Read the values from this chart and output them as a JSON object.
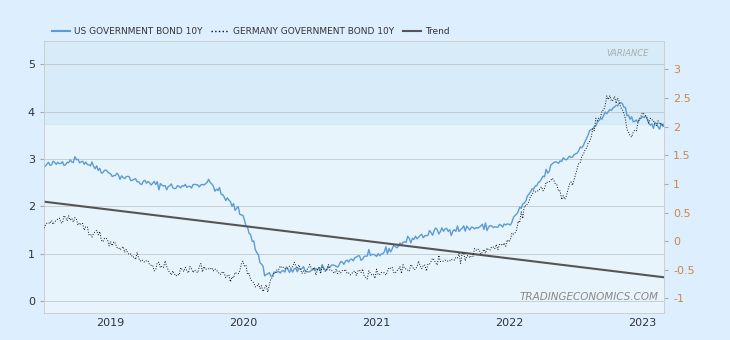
{
  "legend_items": [
    {
      "label": "US GOVERNMENT BOND 10Y",
      "color": "#5b9bd5",
      "linestyle": "solid"
    },
    {
      "label": "GERMANY GOVERNMENT BOND 10Y",
      "color": "#111111",
      "linestyle": "dotted"
    },
    {
      "label": "Trend",
      "color": "#555555",
      "linestyle": "solid"
    }
  ],
  "left_yticks": [
    0,
    1,
    2,
    3,
    4,
    5
  ],
  "right_yticks": [
    -1,
    -0.5,
    0,
    0.5,
    1,
    1.5,
    2,
    2.5,
    3
  ],
  "xtick_labels": [
    "2019",
    "2020",
    "2021",
    "2022",
    "2023"
  ],
  "xtick_positions": [
    6,
    18,
    30,
    42,
    54
  ],
  "ylim_left": [
    -0.25,
    5.5
  ],
  "ylim_right": [
    -1.25,
    3.5
  ],
  "xlim": [
    0,
    56
  ],
  "background_fill": "#e8f4fc",
  "grid_color": "#aaaaaa",
  "watermark": "TRADINGECONOMICS.COM",
  "variance_label": "VARIANCE",
  "variance_color": "#aaaaaa",
  "trend_start": 2.1,
  "trend_end": 0.5,
  "us_bond_color": "#5b9bd5",
  "de_bond_color": "#111111",
  "trend_color": "#555555",
  "right_axis_color": "#cc8844"
}
